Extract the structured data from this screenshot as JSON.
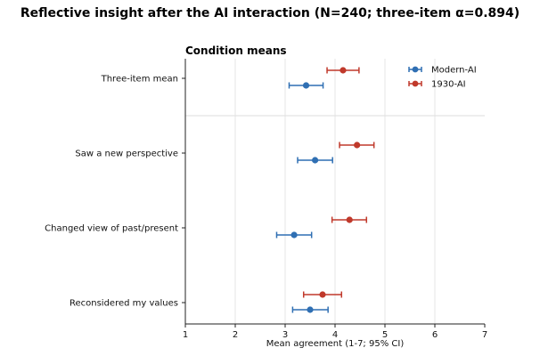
{
  "chart_data": {
    "type": "scatter",
    "title": "Reflective insight after the AI interaction (N=240; three-item α=0.894)",
    "subtitle": "Condition means",
    "xlabel": "Mean agreement (1-7; 95% CI)",
    "ylabel": "",
    "xlim": [
      1,
      7
    ],
    "xticks": [
      "1",
      "2",
      "3",
      "4",
      "5",
      "6",
      "7"
    ],
    "grid": true,
    "legend_position": "top-right",
    "categories": [
      "Three-item mean",
      "Saw a new perspective",
      "Changed view of past/present",
      "Reconsidered my values"
    ],
    "series": [
      {
        "name": "Modern-AI",
        "color": "#2f6fb3",
        "values": [
          3.42,
          3.6,
          3.18,
          3.5
        ],
        "ci_low": [
          3.08,
          3.25,
          2.83,
          3.15
        ],
        "ci_high": [
          3.76,
          3.95,
          3.53,
          3.86
        ]
      },
      {
        "name": "1930-AI",
        "color": "#c0392b",
        "values": [
          4.16,
          4.44,
          4.29,
          3.75
        ],
        "ci_low": [
          3.84,
          4.09,
          3.94,
          3.37
        ],
        "ci_high": [
          4.48,
          4.78,
          4.63,
          4.13
        ]
      }
    ]
  }
}
